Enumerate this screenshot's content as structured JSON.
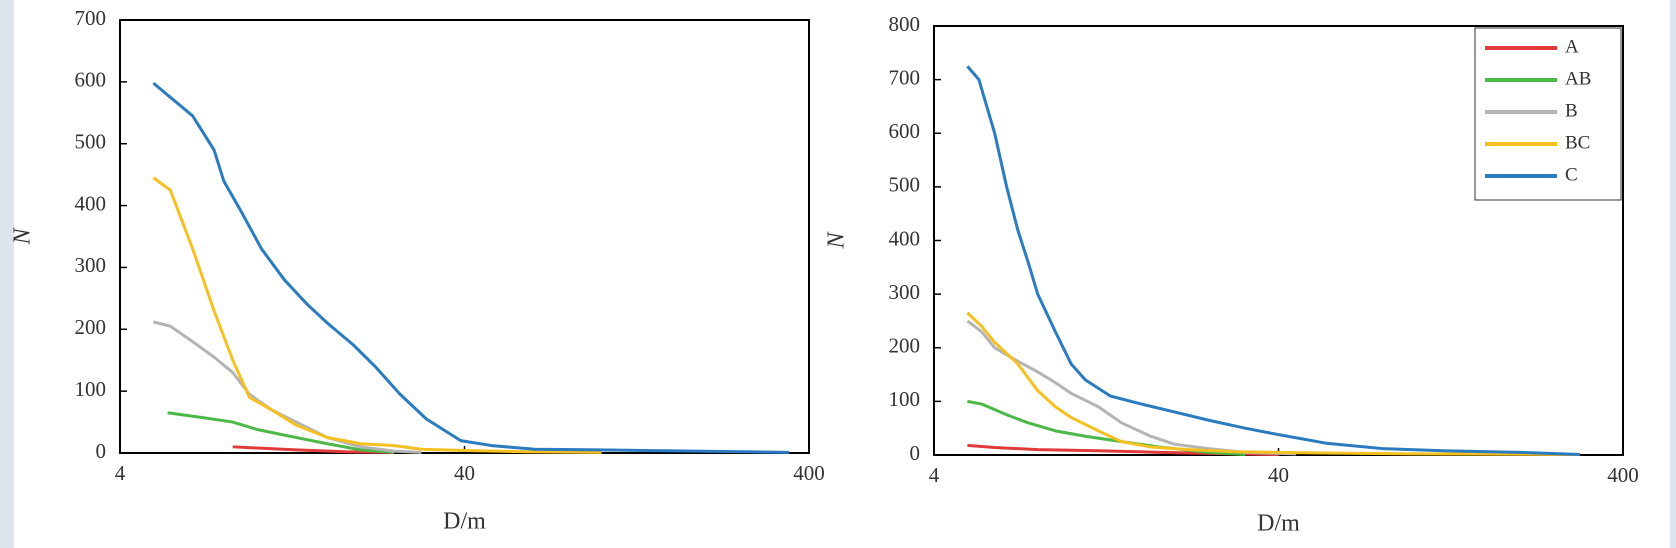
{
  "chart_data": [
    {
      "type": "line",
      "xlabel": "D/m",
      "ylabel": "N",
      "xscale": "log",
      "xlim": [
        4,
        400
      ],
      "xticks": [
        4,
        40,
        400
      ],
      "ylim": [
        0,
        700
      ],
      "yticks": [
        0,
        100,
        200,
        300,
        400,
        500,
        600,
        700
      ],
      "series": [
        {
          "color": "#e03a3a",
          "x": [
            8.5,
            10,
            13,
            18,
            25
          ],
          "values": [
            10,
            8,
            5,
            2,
            1
          ]
        },
        {
          "color": "#4cb848",
          "x": [
            5.5,
            7,
            8.5,
            10,
            13,
            16,
            20,
            25
          ],
          "values": [
            65,
            57,
            50,
            38,
            25,
            15,
            5,
            1
          ]
        },
        {
          "color": "#b4b4b4",
          "x": [
            5,
            5.6,
            6.5,
            7.5,
            8.5,
            9.5,
            11,
            13,
            16,
            20,
            25,
            30
          ],
          "values": [
            212,
            205,
            180,
            155,
            130,
            95,
            70,
            50,
            25,
            10,
            3,
            1
          ]
        },
        {
          "color": "#f5c020",
          "x": [
            5,
            5.6,
            6.5,
            7.5,
            8.5,
            9.5,
            11,
            13,
            16,
            20,
            25,
            30,
            40,
            60,
            100
          ],
          "values": [
            445,
            425,
            330,
            230,
            150,
            90,
            70,
            45,
            25,
            15,
            12,
            6,
            4,
            2,
            1
          ]
        },
        {
          "color": "#2a7bbf",
          "x": [
            5,
            5.6,
            6.5,
            7.5,
            8,
            9,
            10.3,
            12,
            14,
            16,
            19,
            22,
            26,
            31,
            39,
            48,
            64,
            98,
            186,
            350
          ],
          "values": [
            598,
            575,
            545,
            490,
            440,
            390,
            330,
            280,
            240,
            210,
            175,
            140,
            95,
            55,
            20,
            12,
            6,
            5,
            3,
            1
          ]
        }
      ]
    },
    {
      "type": "line",
      "xlabel": "D/m",
      "ylabel": "N",
      "xscale": "log",
      "legend": "upper right",
      "xlim": [
        4,
        400
      ],
      "xticks": [
        4,
        40,
        400
      ],
      "ylim": [
        0,
        800
      ],
      "yticks": [
        0,
        100,
        200,
        300,
        400,
        500,
        600,
        700,
        800
      ],
      "series": [
        {
          "name": "A",
          "color": "#e03a3a",
          "x": [
            5,
            6,
            8,
            12,
            18,
            25,
            40
          ],
          "values": [
            18,
            14,
            10,
            8,
            5,
            3,
            1
          ]
        },
        {
          "name": "AB",
          "color": "#4cb848",
          "x": [
            5,
            5.5,
            6.5,
            7.5,
            9,
            11,
            14,
            18,
            25,
            32
          ],
          "values": [
            100,
            95,
            75,
            60,
            45,
            35,
            25,
            15,
            5,
            1
          ]
        },
        {
          "name": "B",
          "color": "#b4b4b4",
          "x": [
            5,
            5.5,
            6,
            7,
            8,
            9,
            10,
            12,
            14,
            17,
            20,
            25,
            32,
            45
          ],
          "values": [
            250,
            230,
            200,
            175,
            155,
            135,
            115,
            90,
            60,
            35,
            20,
            12,
            5,
            2
          ]
        },
        {
          "name": "BC",
          "color": "#f5c020",
          "x": [
            5,
            5.5,
            6,
            7,
            8,
            9,
            10,
            12,
            14,
            17,
            22,
            30,
            50,
            100,
            300
          ],
          "values": [
            265,
            240,
            210,
            170,
            120,
            90,
            70,
            45,
            25,
            15,
            10,
            6,
            4,
            2,
            1
          ]
        },
        {
          "name": "C",
          "color": "#2a7bbf",
          "x": [
            5,
            5.4,
            6,
            6.5,
            7,
            7.5,
            8,
            9,
            10,
            11,
            13,
            16,
            20,
            25,
            32,
            40,
            55,
            80,
            120,
            200,
            300
          ],
          "values": [
            725,
            700,
            600,
            500,
            420,
            360,
            300,
            230,
            170,
            140,
            110,
            95,
            80,
            65,
            50,
            38,
            22,
            12,
            8,
            5,
            1
          ]
        }
      ]
    }
  ]
}
